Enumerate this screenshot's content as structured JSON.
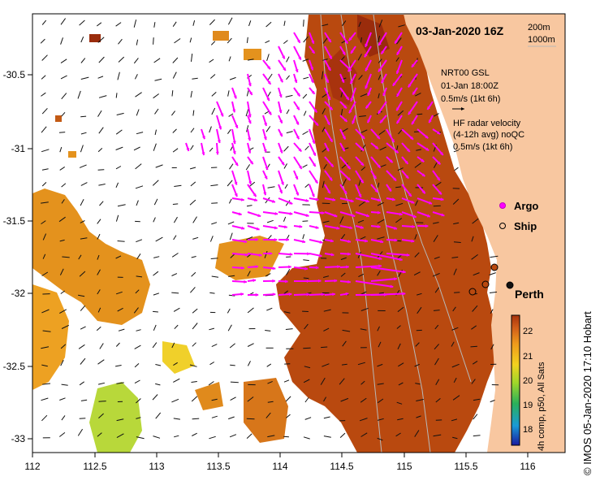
{
  "map": {
    "title": "03-Jan-2020 16Z",
    "depth_labels": [
      "200m",
      "1000m"
    ],
    "model_label": [
      "NRT00 GSL",
      "01-Jan 18:00Z",
      "0.5m/s (1kt 6h)"
    ],
    "radar_label": [
      "HF radar velocity",
      "(4-12h avg) noQC",
      "0.5m/s (1kt 6h)"
    ],
    "legend": {
      "argo": "Argo",
      "ship": "Ship"
    },
    "city": "Perth",
    "credit": "© IMOS 05-Jan-2020 17:10 Hobart",
    "lon_ticks": [
      "112",
      "112.5",
      "113",
      "113.5",
      "114",
      "114.5",
      "115",
      "115.5",
      "116"
    ],
    "lat_ticks": [
      "-30.5",
      "-31",
      "-31.5",
      "-32",
      "-32.5",
      "-33"
    ]
  },
  "colorbar": {
    "label": "4h comp, p50, All Sats",
    "ticks": [
      "22",
      "21",
      "20",
      "19",
      "18"
    ],
    "min": 17.5,
    "max": 22.5
  },
  "colors": {
    "land": "#f8c7a0",
    "warm": "#b9490f",
    "mid": "#e08a1c",
    "cool": "#f0b02a",
    "radar": "#ff00ff",
    "model": "#111111"
  }
}
